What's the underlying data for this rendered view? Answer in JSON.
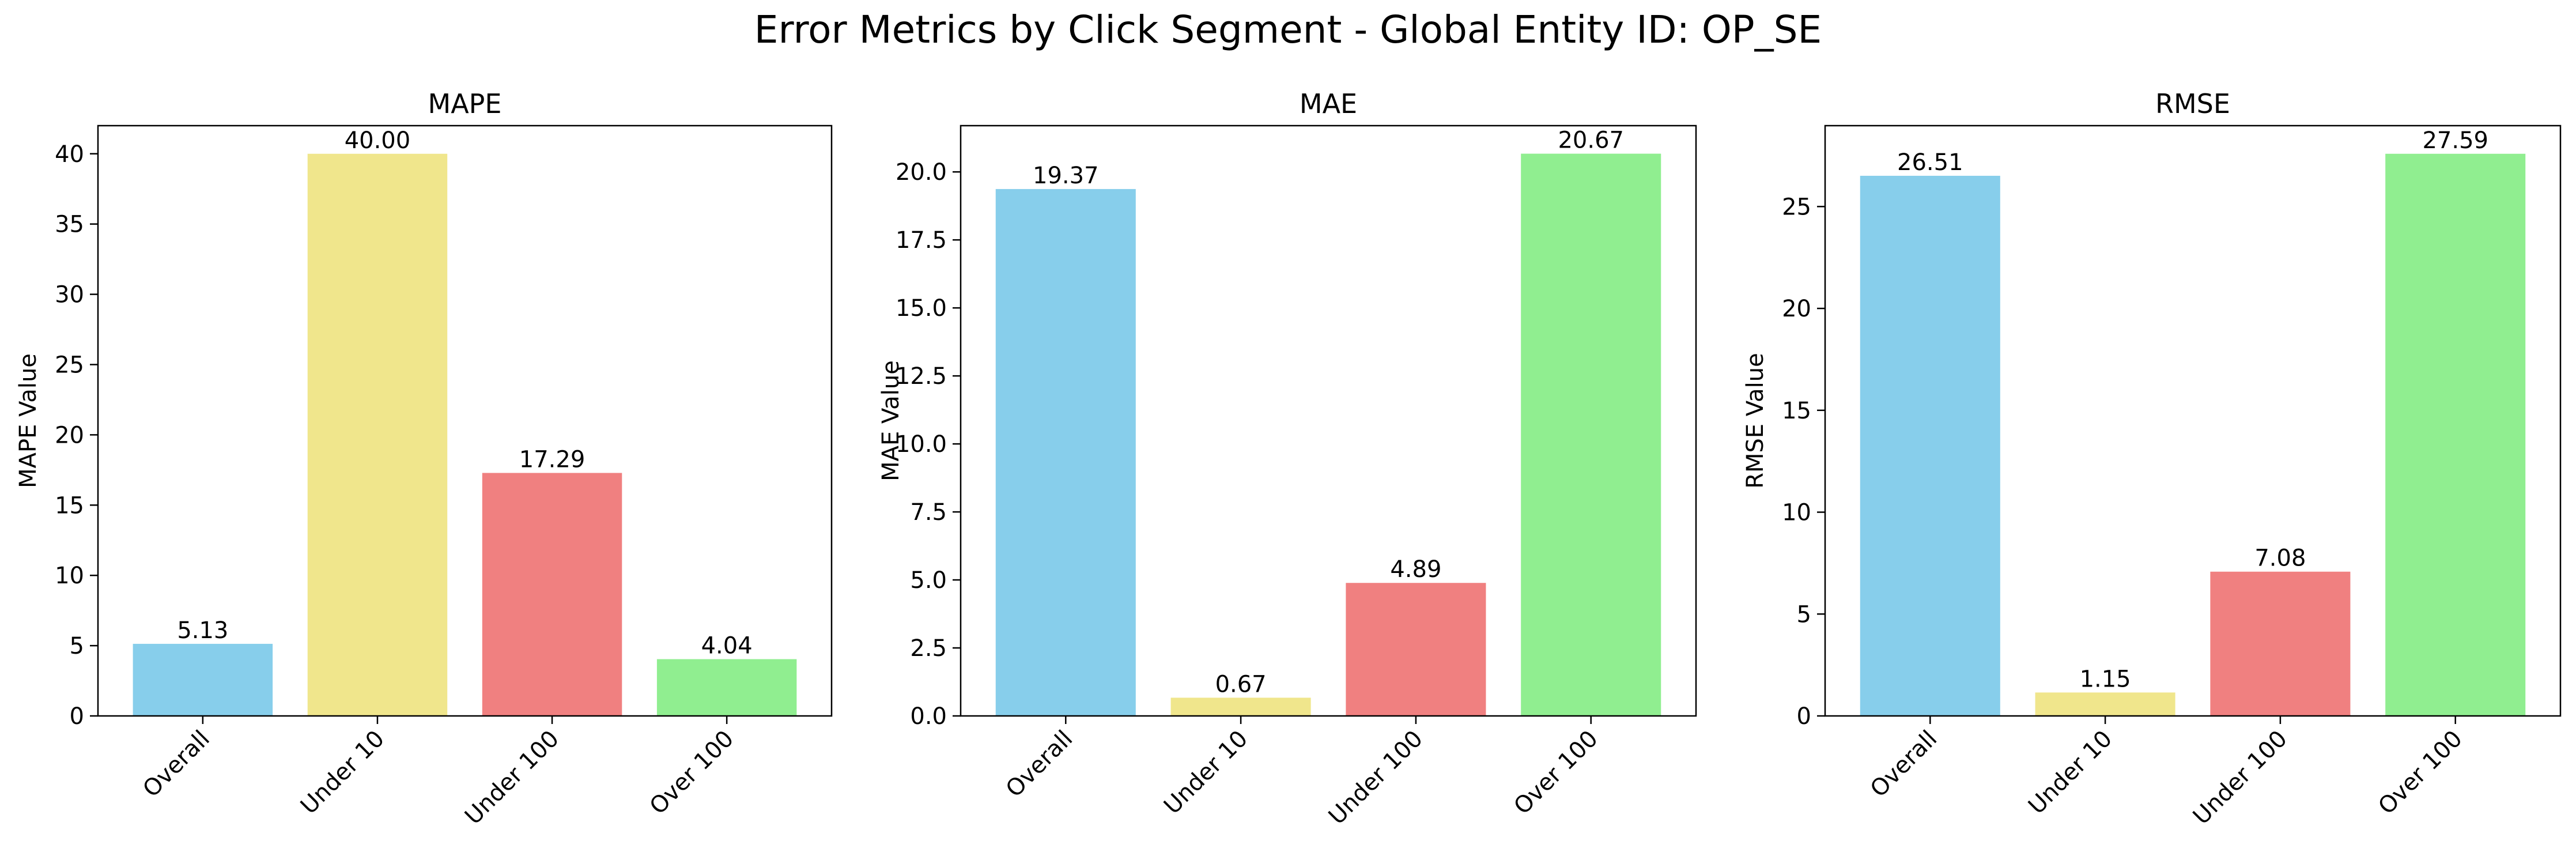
{
  "figure": {
    "title": "Error Metrics by Click Segment - Global Entity ID: OP_SE"
  },
  "chart_data": [
    {
      "type": "bar",
      "title": "MAPE",
      "xlabel": "",
      "ylabel": "MAPE Value",
      "categories": [
        "Overall",
        "Under 10",
        "Under 100",
        "Over 100"
      ],
      "values": [
        5.13,
        40.0,
        17.29,
        4.04
      ],
      "value_labels": [
        "5.13",
        "40.00",
        "17.29",
        "4.04"
      ],
      "colors": [
        "#87CEEB",
        "#F0E68C",
        "#F08080",
        "#90EE90"
      ],
      "ylim": [
        0,
        42
      ],
      "yticks": [
        0,
        5,
        10,
        15,
        20,
        25,
        30,
        35,
        40
      ],
      "ytick_labels": [
        "0",
        "5",
        "10",
        "15",
        "20",
        "25",
        "30",
        "35",
        "40"
      ],
      "grid": false,
      "legend": "none"
    },
    {
      "type": "bar",
      "title": "MAE",
      "xlabel": "",
      "ylabel": "MAE Value",
      "categories": [
        "Overall",
        "Under 10",
        "Under 100",
        "Over 100"
      ],
      "values": [
        19.37,
        0.67,
        4.89,
        20.67
      ],
      "value_labels": [
        "19.37",
        "0.67",
        "4.89",
        "20.67"
      ],
      "colors": [
        "#87CEEB",
        "#F0E68C",
        "#F08080",
        "#90EE90"
      ],
      "ylim": [
        0,
        21.7
      ],
      "yticks": [
        0,
        2.5,
        5,
        7.5,
        10,
        12.5,
        15,
        17.5,
        20
      ],
      "ytick_labels": [
        "0.0",
        "2.5",
        "5.0",
        "7.5",
        "10.0",
        "12.5",
        "15.0",
        "17.5",
        "20.0"
      ],
      "grid": false,
      "legend": "none"
    },
    {
      "type": "bar",
      "title": "RMSE",
      "xlabel": "",
      "ylabel": "RMSE Value",
      "categories": [
        "Overall",
        "Under 10",
        "Under 100",
        "Over 100"
      ],
      "values": [
        26.51,
        1.15,
        7.08,
        27.59
      ],
      "value_labels": [
        "26.51",
        "1.15",
        "7.08",
        "27.59"
      ],
      "colors": [
        "#87CEEB",
        "#F0E68C",
        "#F08080",
        "#90EE90"
      ],
      "ylim": [
        0,
        28.97
      ],
      "yticks": [
        0,
        5,
        10,
        15,
        20,
        25
      ],
      "ytick_labels": [
        "0",
        "5",
        "10",
        "15",
        "20",
        "25"
      ],
      "grid": false,
      "legend": "none"
    }
  ]
}
